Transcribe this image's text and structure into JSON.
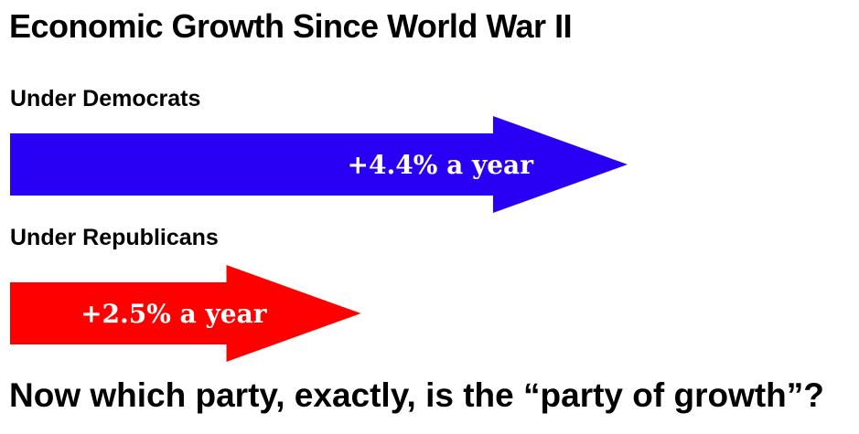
{
  "chart_data": {
    "type": "bar",
    "orientation": "horizontal",
    "title": "Economic Growth Since World War II",
    "categories": [
      "Under Democrats",
      "Under Republicans"
    ],
    "values": [
      4.4,
      2.5
    ],
    "value_labels": [
      "+4.4% a year",
      "+2.5% a year"
    ],
    "colors": [
      "#2a00f5",
      "#ff0000"
    ],
    "unit": "% a year",
    "grid": false,
    "legend": "none",
    "axes_shown": false
  },
  "footer": {
    "text": "Now which party, exactly, is the “party of growth”?"
  }
}
